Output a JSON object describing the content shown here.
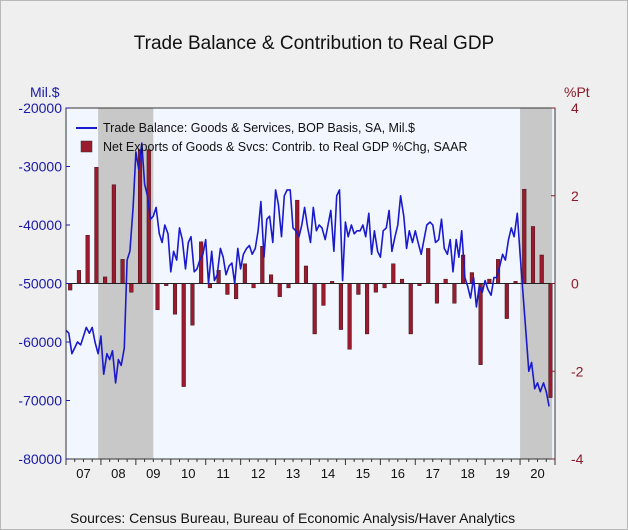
{
  "chart_data": {
    "type": "bar+line",
    "title": "Trade Balance & Contribution to Real GDP",
    "source": "Sources:  Census Bureau, Bureau of Economic Analysis/Haver Analytics",
    "left_axis": {
      "unit_label": "Mil.$",
      "ylim": [
        -80000,
        -20000
      ],
      "ticks": [
        "-20000",
        "-30000",
        "-40000",
        "-50000",
        "-60000",
        "-70000",
        "-80000"
      ],
      "color": "#1a1aa6"
    },
    "right_axis": {
      "unit_label": "%Pt",
      "ylim": [
        -4,
        4
      ],
      "ticks": [
        "4",
        "2",
        "0",
        "-2",
        "-4"
      ],
      "color": "#8b1a2a"
    },
    "x_labels": [
      "07",
      "08",
      "09",
      "10",
      "11",
      "12",
      "13",
      "14",
      "15",
      "16",
      "17",
      "18",
      "19",
      "20"
    ],
    "x_range": [
      2007.0,
      2021.0
    ],
    "recessions": [
      [
        2007.92,
        2009.5
      ],
      [
        2020.0,
        2020.92
      ]
    ],
    "legend": {
      "line": "Trade Balance: Goods & Services, BOP Basis, SA, Mil.$",
      "bar": "Net Exports of Goods & Svcs: Contrib. to Real GDP %Chg, SAAR"
    },
    "series": [
      {
        "name": "Trade Balance: Goods & Services, BOP Basis, SA, Mil.$",
        "type": "line",
        "axis": "left",
        "color": "#1a1acc",
        "x": [
          2007.0,
          2007.08,
          2007.17,
          2007.25,
          2007.33,
          2007.42,
          2007.5,
          2007.58,
          2007.67,
          2007.75,
          2007.83,
          2007.92,
          2008.0,
          2008.08,
          2008.17,
          2008.25,
          2008.33,
          2008.42,
          2008.5,
          2008.58,
          2008.67,
          2008.75,
          2008.83,
          2008.92,
          2009.0,
          2009.08,
          2009.17,
          2009.25,
          2009.33,
          2009.42,
          2009.5,
          2009.58,
          2009.67,
          2009.75,
          2009.83,
          2009.92,
          2010.0,
          2010.08,
          2010.17,
          2010.25,
          2010.33,
          2010.42,
          2010.5,
          2010.58,
          2010.67,
          2010.75,
          2010.83,
          2010.92,
          2011.0,
          2011.08,
          2011.17,
          2011.25,
          2011.33,
          2011.42,
          2011.5,
          2011.58,
          2011.67,
          2011.75,
          2011.83,
          2011.92,
          2012.0,
          2012.08,
          2012.17,
          2012.25,
          2012.33,
          2012.42,
          2012.5,
          2012.58,
          2012.67,
          2012.75,
          2012.83,
          2012.92,
          2013.0,
          2013.08,
          2013.17,
          2013.25,
          2013.33,
          2013.42,
          2013.5,
          2013.58,
          2013.67,
          2013.75,
          2013.83,
          2013.92,
          2014.0,
          2014.08,
          2014.17,
          2014.25,
          2014.33,
          2014.42,
          2014.5,
          2014.58,
          2014.67,
          2014.75,
          2014.83,
          2014.92,
          2015.0,
          2015.08,
          2015.17,
          2015.25,
          2015.33,
          2015.42,
          2015.5,
          2015.58,
          2015.67,
          2015.75,
          2015.83,
          2015.92,
          2016.0,
          2016.08,
          2016.17,
          2016.25,
          2016.33,
          2016.42,
          2016.5,
          2016.58,
          2016.67,
          2016.75,
          2016.83,
          2016.92,
          2017.0,
          2017.08,
          2017.17,
          2017.25,
          2017.33,
          2017.42,
          2017.5,
          2017.58,
          2017.67,
          2017.75,
          2017.83,
          2017.92,
          2018.0,
          2018.08,
          2018.17,
          2018.25,
          2018.33,
          2018.42,
          2018.5,
          2018.58,
          2018.67,
          2018.75,
          2018.83,
          2018.92,
          2019.0,
          2019.08,
          2019.17,
          2019.25,
          2019.33,
          2019.42,
          2019.5,
          2019.58,
          2019.67,
          2019.75,
          2019.83,
          2019.92,
          2020.0,
          2020.08,
          2020.17,
          2020.25,
          2020.33,
          2020.42,
          2020.5,
          2020.58,
          2020.67,
          2020.75,
          2020.83
        ],
        "y": [
          -58000,
          -58500,
          -62000,
          -61000,
          -60000,
          -60500,
          -59000,
          -57500,
          -58500,
          -57500,
          -60000,
          -62000,
          -59000,
          -65500,
          -62000,
          -63000,
          -61500,
          -67000,
          -63000,
          -64000,
          -61000,
          -46000,
          -44500,
          -37000,
          -27500,
          -30500,
          -26000,
          -33000,
          -35000,
          -39000,
          -38500,
          -37000,
          -41500,
          -43000,
          -40000,
          -41500,
          -48000,
          -44500,
          -46000,
          -40500,
          -42500,
          -47500,
          -43000,
          -42000,
          -48000,
          -47500,
          -46000,
          -45000,
          -42500,
          -50000,
          -44500,
          -49500,
          -48500,
          -44000,
          -45500,
          -48500,
          -47000,
          -46500,
          -50000,
          -44000,
          -47500,
          -45000,
          -44000,
          -43500,
          -45000,
          -44000,
          -41000,
          -36000,
          -45500,
          -39000,
          -38500,
          -43000,
          -34000,
          -36500,
          -42000,
          -35000,
          -34000,
          -34000,
          -40500,
          -41000,
          -42000,
          -40000,
          -37000,
          -40500,
          -43000,
          -37000,
          -41000,
          -40000,
          -40500,
          -42500,
          -40000,
          -37500,
          -44500,
          -35000,
          -34000,
          -49500,
          -39500,
          -42000,
          -40000,
          -41500,
          -41000,
          -41000,
          -40000,
          -42000,
          -38000,
          -45000,
          -41000,
          -44500,
          -45500,
          -41000,
          -40500,
          -37500,
          -44500,
          -42000,
          -40000,
          -35000,
          -38500,
          -44000,
          -41000,
          -43000,
          -41000,
          -43000,
          -45000,
          -42500,
          -40000,
          -39500,
          -40000,
          -43000,
          -42500,
          -39000,
          -44000,
          -45000,
          -42500,
          -48000,
          -42500,
          -45500,
          -41000,
          -49000,
          -50500,
          -52500,
          -49000,
          -54000,
          -50500,
          -51500,
          -49500,
          -51000,
          -52000,
          -49000,
          -49000,
          -47000,
          -45000,
          -46000,
          -42500,
          -40500,
          -42000,
          -38000,
          -45000,
          -51500,
          -58500,
          -65000,
          -63500,
          -68000,
          -67000,
          -68500,
          -67000,
          -68500,
          -71000
        ]
      },
      {
        "name": "Net Exports of Goods & Svcs: Contrib. to Real GDP %Chg, SAAR",
        "type": "bar",
        "axis": "right",
        "color": "#9b1b2e",
        "x": [
          2007.12,
          2007.37,
          2007.62,
          2007.87,
          2008.12,
          2008.37,
          2008.62,
          2008.87,
          2009.12,
          2009.37,
          2009.62,
          2009.87,
          2010.12,
          2010.37,
          2010.62,
          2010.87,
          2011.12,
          2011.37,
          2011.62,
          2011.87,
          2012.12,
          2012.37,
          2012.62,
          2012.87,
          2013.12,
          2013.37,
          2013.62,
          2013.87,
          2014.12,
          2014.37,
          2014.62,
          2014.87,
          2015.12,
          2015.37,
          2015.62,
          2015.87,
          2016.12,
          2016.37,
          2016.62,
          2016.87,
          2017.12,
          2017.37,
          2017.62,
          2017.87,
          2018.12,
          2018.37,
          2018.62,
          2018.87,
          2019.12,
          2019.37,
          2019.62,
          2019.87,
          2020.12,
          2020.37,
          2020.62,
          2020.87
        ],
        "values": [
          -0.15,
          0.3,
          1.1,
          2.65,
          0.15,
          2.25,
          0.55,
          -0.2,
          3.05,
          3.05,
          -0.6,
          -0.05,
          -0.7,
          -2.35,
          -0.95,
          0.95,
          -0.1,
          0.3,
          -0.25,
          -0.35,
          0.45,
          -0.1,
          0.85,
          0.2,
          -0.3,
          -0.1,
          1.9,
          0.4,
          -1.15,
          -0.5,
          0.05,
          -1.05,
          -1.5,
          -0.25,
          -1.15,
          -0.2,
          -0.1,
          0.45,
          0.1,
          -1.15,
          -0.05,
          0.8,
          -0.45,
          0.1,
          -0.45,
          0.65,
          0.25,
          -1.85,
          0.1,
          0.55,
          -0.8,
          0.05,
          2.15,
          1.3,
          0.65,
          -2.6
        ]
      }
    ]
  }
}
